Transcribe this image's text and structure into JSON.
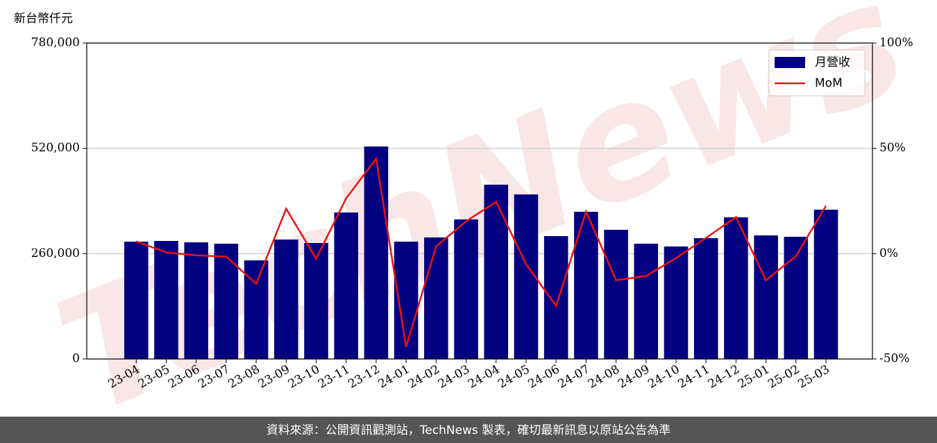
{
  "chart_data": {
    "type": "bar-line",
    "y_axis_label": "新台幣仟元",
    "watermark": "TechNews",
    "footer": "資料來源：公開資訊觀測站，TechNews 製表，確切最新訊息以原站公告為準",
    "categories": [
      "23-04",
      "23-05",
      "23-06",
      "23-07",
      "23-08",
      "23-09",
      "23-10",
      "23-11",
      "23-12",
      "24-01",
      "24-02",
      "24-03",
      "24-04",
      "24-05",
      "24-06",
      "24-07",
      "24-08",
      "24-09",
      "24-10",
      "24-11",
      "24-12",
      "25-01",
      "25-02",
      "25-03"
    ],
    "series": [
      {
        "name": "月營收",
        "kind": "bar",
        "color": "#000080",
        "values": [
          289700,
          291400,
          288000,
          284600,
          243400,
          294900,
          286300,
          361700,
          524600,
          289700,
          300000,
          344600,
          430300,
          406300,
          303400,
          363400,
          318900,
          284600,
          277700,
          298300,
          349700,
          305100,
          301700,
          368600
        ]
      },
      {
        "name": "MoM",
        "kind": "line",
        "axis": "y2",
        "color": "#ee1111",
        "values": [
          5.8,
          0.6,
          -0.8,
          -1.4,
          -14.3,
          21.3,
          -2.4,
          26.3,
          45.1,
          -44.3,
          3.5,
          15.4,
          24.6,
          -5.0,
          -24.8,
          20.0,
          -12.6,
          -10.6,
          -2.1,
          7.5,
          17.4,
          -12.6,
          -1.1,
          22.7
        ]
      }
    ],
    "ylim": [
      0,
      780000
    ],
    "yticks": [
      0,
      {
        "value": 260000,
        "label": "260,000"
      },
      {
        "value": 520000,
        "label": "520,000"
      },
      {
        "value": 780000,
        "label": "780,000"
      }
    ],
    "y2lim": [
      -50,
      100
    ],
    "y2ticks": [
      {
        "value": -50,
        "label": "-50%"
      },
      {
        "value": 0,
        "label": "0%"
      },
      {
        "value": 50,
        "label": "50%"
      },
      {
        "value": 100,
        "label": "100%"
      }
    ],
    "grid": true,
    "legend": "upper right"
  }
}
